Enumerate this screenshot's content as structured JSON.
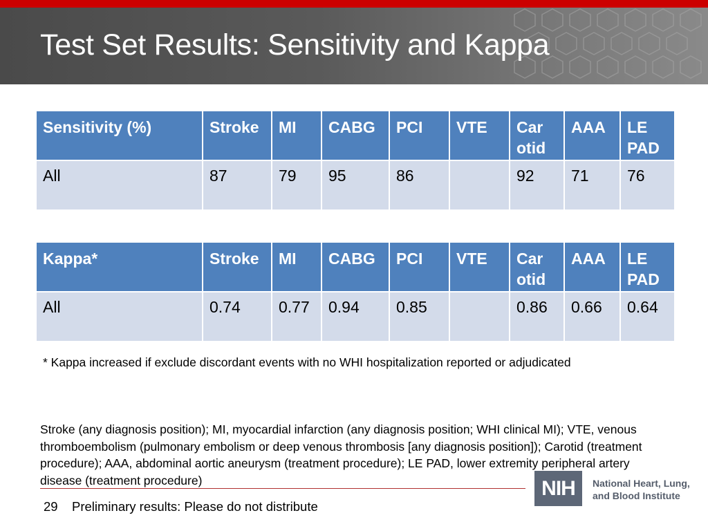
{
  "title": "Test Set Results:  Sensitivity and Kappa",
  "sensitivity_table": {
    "headers": [
      "Sensitivity (%)",
      "Stroke",
      "MI",
      "CABG",
      "PCI",
      "VTE",
      "Car otid",
      "AAA",
      "LE PAD"
    ],
    "rows": [
      [
        "All",
        "87",
        "79",
        "95",
        "86",
        "",
        "92",
        "71",
        "76"
      ]
    ]
  },
  "kappa_table": {
    "headers": [
      "Kappa*",
      "Stroke",
      "MI",
      "CABG",
      "PCI",
      "VTE",
      "Car otid",
      "AAA",
      "LE PAD"
    ],
    "rows": [
      [
        "All",
        "0.74",
        "0.77",
        "0.94",
        "0.85",
        "",
        "0.86",
        "0.66",
        "0.64"
      ]
    ]
  },
  "footnote": "* Kappa increased if exclude discordant events with no WHI hospitalization reported or adjudicated",
  "definitions": "Stroke (any diagnosis position); MI, myocardial infarction (any diagnosis position; WHI clinical MI); VTE, venous thromboembolism (pulmonary embolism or deep venous thrombosis [any diagnosis position]); Carotid (treatment procedure); AAA, abdominal aortic aneurysm (treatment procedure); LE PAD, lower extremity peripheral artery disease (treatment procedure)",
  "footer": {
    "page_number": "29",
    "text": "Preliminary results:  Please do not distribute"
  },
  "logo": {
    "badge": "NIH",
    "institute_line1": "National Heart, Lung,",
    "institute_line2": "and Blood Institute"
  },
  "colors": {
    "accent_red": "#cc0000",
    "header_blue": "#4f81bd",
    "cell_blue": "#d3dbea"
  }
}
